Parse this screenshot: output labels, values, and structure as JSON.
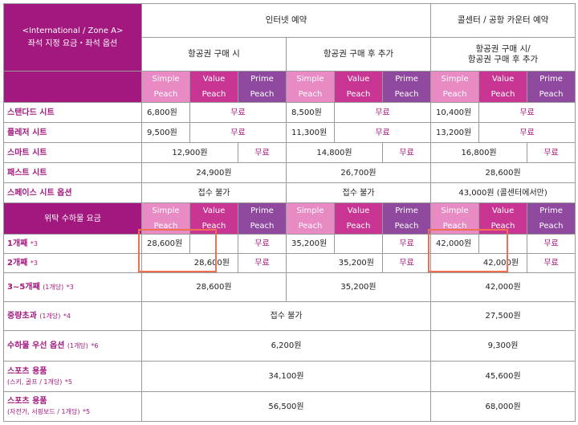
{
  "header": {
    "corner_line1": "<International / Zone A>",
    "corner_line2": "좌석 지정 요금・좌석 옵션",
    "group_internet": "인터넷 예약",
    "group_callcenter": "콜센터 / 공항 카운터 예약",
    "sub_at_purchase": "항공권 구매 시",
    "sub_after_purchase": "항공권 구매 후 추가",
    "sub_call_line1": "항공권 구매 시/",
    "sub_call_line2": "항공권 구매 후 추가"
  },
  "classes": {
    "simple_l1": "Simple",
    "simple_l2": "Peach",
    "value_l1": "Value",
    "value_l2": "Peach",
    "prime_l1": "Prime",
    "prime_l2": "Peach"
  },
  "seats": [
    {
      "label": "스탠다드 시트",
      "c1": "6,800원",
      "c1free": "무료",
      "c2": "8,500원",
      "c2free": "무료",
      "c3": "10,400원",
      "c3free": "무료"
    },
    {
      "label": "플레저 시트",
      "c1": "9,500원",
      "c1free": "무료",
      "c2": "11,300원",
      "c2free": "무료",
      "c3": "13,200원",
      "c3free": "무료"
    },
    {
      "label": "스마트 시트",
      "c1": "12,900원",
      "c1free": "무료",
      "c2": "14,800원",
      "c2free": "무료",
      "c3": "16,800원",
      "c3free": "무료"
    },
    {
      "label": "패스트 시트",
      "c1": "24,900원",
      "c2": "26,700원",
      "c3": "28,600원"
    },
    {
      "label": "스페이스 시트 옵션",
      "c1": "접수 불가",
      "c2": "접수 불가",
      "c3": "43,000원 (콜센터에서만)"
    }
  ],
  "baggage_header": "위탁 수하물 요금",
  "baggage": [
    {
      "label": "1개째",
      "note": "*3",
      "c1": "28,600원",
      "c1free": "무료",
      "c2": "35,200원",
      "c2free": "무료",
      "c3": "42,000원",
      "c3free": "무료"
    },
    {
      "label": "2개째",
      "note": "*3",
      "c1": "28,600원",
      "c1free": "무료",
      "c2": "35,200원",
      "c2free": "무료",
      "c3": "42,000원",
      "c3free": "무료"
    },
    {
      "label": "3~5개째",
      "unit": "(1개당)",
      "note": "*3",
      "c1": "28,600원",
      "c2": "35,200원",
      "c3": "42,000원"
    },
    {
      "label": "중량초과",
      "unit": "(1개당)",
      "note": "*4",
      "internet": "접수 불가",
      "c3": "27,500원"
    },
    {
      "label": "수하물 우선 옵션",
      "unit": "(1개당)",
      "note": "*6",
      "internet": "6,200원",
      "c3": "9,300원"
    },
    {
      "label": "스포츠 용품",
      "label2": "(스키, 골프 / 1개당)",
      "note": "*5",
      "internet": "34,100원",
      "c3": "45,600원"
    },
    {
      "label": "스포츠 용품",
      "label2": "(자전거, 서핑보드 / 1개당)",
      "note": "*5",
      "internet": "56,500원",
      "c3": "68,000원"
    }
  ]
}
